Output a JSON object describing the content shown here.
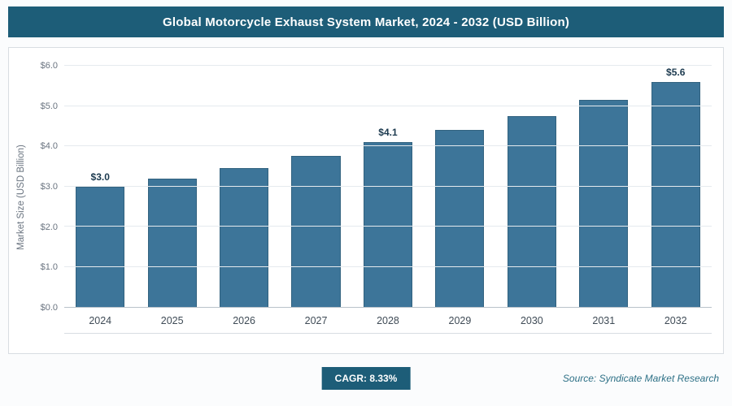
{
  "header": {
    "title": "Global Motorcycle Exhaust System Market, 2024 - 2032 (USD Billion)"
  },
  "chart_data": {
    "type": "bar",
    "title": "Global Motorcycle Exhaust System Market, 2024 - 2032 (USD Billion)",
    "categories": [
      "2024",
      "2025",
      "2026",
      "2027",
      "2028",
      "2029",
      "2030",
      "2031",
      "2032"
    ],
    "values": [
      3.0,
      3.2,
      3.45,
      3.75,
      4.1,
      4.4,
      4.75,
      5.15,
      5.6
    ],
    "bar_labels": [
      "$3.0",
      "",
      "",
      "",
      "$4.1",
      "",
      "",
      "",
      "$5.6"
    ],
    "xlabel": "",
    "ylabel": "Market Size (USD Billion)",
    "ylim": [
      0,
      6
    ],
    "yticks": [
      "$0.0",
      "$1.0",
      "$2.0",
      "$3.0",
      "$4.0",
      "$5.0",
      "$6.0"
    ],
    "grid": true,
    "legend": false,
    "bar_color": "#3d7599"
  },
  "footer": {
    "cagr_label": "CAGR: 8.33%",
    "source": "Source: Syndicate Market Research"
  },
  "colors": {
    "header_bg": "#1d5d78",
    "bar": "#3d7599",
    "badge_bg": "#1d5d78",
    "source_text": "#2d7086"
  }
}
